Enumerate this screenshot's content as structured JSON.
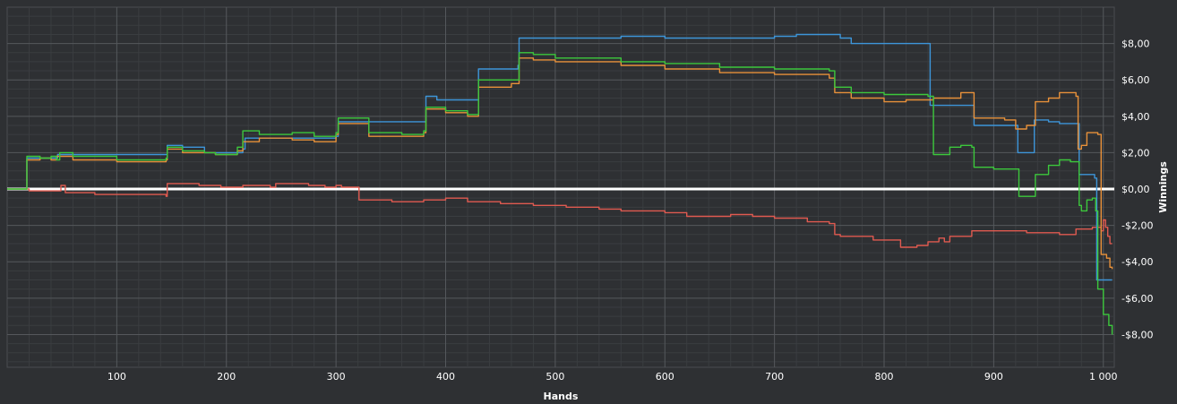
{
  "chart_data": {
    "type": "line",
    "xlabel": "Hands",
    "ylabel": "Winnings",
    "xlim": [
      0,
      1010
    ],
    "ylim": [
      -9.8,
      10
    ],
    "x_ticks": [
      100,
      200,
      300,
      400,
      500,
      600,
      700,
      800,
      900,
      1000
    ],
    "x_tick_labels": [
      "100",
      "200",
      "300",
      "400",
      "500",
      "600",
      "700",
      "800",
      "900",
      "1 000"
    ],
    "y_ticks": [
      8,
      6,
      4,
      2,
      0,
      -2,
      -4,
      -6,
      -8
    ],
    "y_tick_labels": [
      "$8,00",
      "$6,00",
      "$4,00",
      "$2,00",
      "$0,00",
      "-$2,00",
      "-$4,00",
      "-$6,00",
      "-$8,00"
    ],
    "grid": true,
    "zero_line": true,
    "series": [
      {
        "color": "#e05a50",
        "points": [
          [
            0,
            0
          ],
          [
            20,
            -0.1
          ],
          [
            48,
            -0.1
          ],
          [
            49,
            0.2
          ],
          [
            52,
            0.2
          ],
          [
            53,
            -0.2
          ],
          [
            80,
            -0.3
          ],
          [
            145,
            -0.4
          ],
          [
            146,
            0.3
          ],
          [
            175,
            0.2
          ],
          [
            195,
            0.1
          ],
          [
            215,
            0.2
          ],
          [
            240,
            0.1
          ],
          [
            245,
            0.3
          ],
          [
            275,
            0.2
          ],
          [
            290,
            0.1
          ],
          [
            300,
            0.2
          ],
          [
            305,
            0.1
          ],
          [
            320,
            0.1
          ],
          [
            321,
            -0.6
          ],
          [
            350,
            -0.6
          ],
          [
            351,
            -0.7
          ],
          [
            380,
            -0.6
          ],
          [
            400,
            -0.5
          ],
          [
            420,
            -0.7
          ],
          [
            450,
            -0.8
          ],
          [
            480,
            -0.9
          ],
          [
            500,
            -0.9
          ],
          [
            510,
            -1.0
          ],
          [
            540,
            -1.1
          ],
          [
            560,
            -1.2
          ],
          [
            600,
            -1.3
          ],
          [
            620,
            -1.5
          ],
          [
            650,
            -1.5
          ],
          [
            660,
            -1.4
          ],
          [
            680,
            -1.5
          ],
          [
            700,
            -1.6
          ],
          [
            730,
            -1.8
          ],
          [
            750,
            -1.9
          ],
          [
            755,
            -2.5
          ],
          [
            760,
            -2.6
          ],
          [
            790,
            -2.8
          ],
          [
            810,
            -2.8
          ],
          [
            815,
            -3.2
          ],
          [
            830,
            -3.1
          ],
          [
            840,
            -2.9
          ],
          [
            850,
            -2.7
          ],
          [
            855,
            -2.9
          ],
          [
            860,
            -2.6
          ],
          [
            880,
            -2.3
          ],
          [
            900,
            -2.3
          ],
          [
            930,
            -2.4
          ],
          [
            960,
            -2.5
          ],
          [
            975,
            -2.2
          ],
          [
            990,
            -2.1
          ],
          [
            998,
            -2.3
          ],
          [
            1000,
            -1.7
          ],
          [
            1002,
            -2.1
          ],
          [
            1004,
            -2.6
          ],
          [
            1006,
            -3.0
          ],
          [
            1008,
            -3.0
          ]
        ]
      },
      {
        "color": "#3d95d9",
        "points": [
          [
            0,
            0
          ],
          [
            17,
            0
          ],
          [
            18,
            1.7
          ],
          [
            40,
            1.7
          ],
          [
            45,
            1.7
          ],
          [
            46,
            1.9
          ],
          [
            60,
            1.9
          ],
          [
            145,
            1.9
          ],
          [
            146,
            2.4
          ],
          [
            160,
            2.3
          ],
          [
            180,
            2.0
          ],
          [
            200,
            2.0
          ],
          [
            215,
            2.2
          ],
          [
            217,
            2.8
          ],
          [
            230,
            2.8
          ],
          [
            260,
            2.8
          ],
          [
            300,
            2.9
          ],
          [
            302,
            3.7
          ],
          [
            380,
            3.7
          ],
          [
            382,
            5.1
          ],
          [
            390,
            5.1
          ],
          [
            392,
            4.9
          ],
          [
            428,
            4.9
          ],
          [
            430,
            6.6
          ],
          [
            460,
            6.6
          ],
          [
            466,
            6.8
          ],
          [
            467,
            8.3
          ],
          [
            500,
            8.3
          ],
          [
            560,
            8.4
          ],
          [
            600,
            8.3
          ],
          [
            700,
            8.4
          ],
          [
            720,
            8.5
          ],
          [
            760,
            8.3
          ],
          [
            770,
            8.0
          ],
          [
            830,
            8.0
          ],
          [
            840,
            8.0
          ],
          [
            842,
            4.6
          ],
          [
            880,
            4.6
          ],
          [
            882,
            3.5
          ],
          [
            920,
            3.5
          ],
          [
            922,
            2.0
          ],
          [
            935,
            2.0
          ],
          [
            937,
            3.8
          ],
          [
            950,
            3.7
          ],
          [
            960,
            3.6
          ],
          [
            975,
            3.6
          ],
          [
            978,
            0.8
          ],
          [
            990,
            0.8
          ],
          [
            992,
            0.6
          ],
          [
            994,
            -5.0
          ],
          [
            1008,
            -5.0
          ]
        ]
      },
      {
        "color": "#e8913a",
        "points": [
          [
            0,
            0
          ],
          [
            17,
            0
          ],
          [
            18,
            1.6
          ],
          [
            30,
            1.7
          ],
          [
            40,
            1.6
          ],
          [
            45,
            1.8
          ],
          [
            60,
            1.6
          ],
          [
            100,
            1.5
          ],
          [
            145,
            1.6
          ],
          [
            146,
            2.2
          ],
          [
            160,
            2.0
          ],
          [
            190,
            1.9
          ],
          [
            210,
            2.1
          ],
          [
            215,
            2.6
          ],
          [
            230,
            2.8
          ],
          [
            260,
            2.7
          ],
          [
            280,
            2.6
          ],
          [
            300,
            3.0
          ],
          [
            302,
            3.6
          ],
          [
            330,
            2.9
          ],
          [
            360,
            2.9
          ],
          [
            380,
            3.1
          ],
          [
            382,
            4.4
          ],
          [
            400,
            4.2
          ],
          [
            420,
            4.0
          ],
          [
            430,
            5.6
          ],
          [
            460,
            5.8
          ],
          [
            467,
            7.2
          ],
          [
            480,
            7.1
          ],
          [
            500,
            7.0
          ],
          [
            560,
            6.8
          ],
          [
            600,
            6.6
          ],
          [
            650,
            6.4
          ],
          [
            700,
            6.3
          ],
          [
            750,
            6.1
          ],
          [
            755,
            5.3
          ],
          [
            770,
            5.0
          ],
          [
            800,
            4.8
          ],
          [
            820,
            4.9
          ],
          [
            845,
            5.0
          ],
          [
            850,
            5.0
          ],
          [
            870,
            5.3
          ],
          [
            880,
            5.3
          ],
          [
            882,
            3.9
          ],
          [
            900,
            3.9
          ],
          [
            910,
            3.8
          ],
          [
            920,
            3.3
          ],
          [
            930,
            3.5
          ],
          [
            938,
            4.8
          ],
          [
            950,
            5.0
          ],
          [
            960,
            5.3
          ],
          [
            975,
            5.1
          ],
          [
            977,
            2.2
          ],
          [
            980,
            2.4
          ],
          [
            985,
            3.1
          ],
          [
            990,
            3.1
          ],
          [
            995,
            3.0
          ],
          [
            998,
            -3.6
          ],
          [
            1003,
            -3.8
          ],
          [
            1006,
            -4.3
          ],
          [
            1008,
            -4.4
          ]
        ]
      },
      {
        "color": "#3cc83c",
        "points": [
          [
            0,
            0
          ],
          [
            17,
            0
          ],
          [
            18,
            1.8
          ],
          [
            30,
            1.7
          ],
          [
            40,
            1.8
          ],
          [
            45,
            1.6
          ],
          [
            48,
            2.0
          ],
          [
            60,
            1.8
          ],
          [
            100,
            1.6
          ],
          [
            145,
            1.7
          ],
          [
            146,
            2.3
          ],
          [
            160,
            2.1
          ],
          [
            180,
            2.0
          ],
          [
            190,
            1.9
          ],
          [
            210,
            2.3
          ],
          [
            215,
            3.2
          ],
          [
            230,
            3.0
          ],
          [
            260,
            3.1
          ],
          [
            280,
            2.9
          ],
          [
            300,
            3.1
          ],
          [
            302,
            3.9
          ],
          [
            330,
            3.1
          ],
          [
            360,
            3.0
          ],
          [
            380,
            3.2
          ],
          [
            382,
            4.5
          ],
          [
            400,
            4.3
          ],
          [
            420,
            4.1
          ],
          [
            430,
            6.0
          ],
          [
            460,
            6.0
          ],
          [
            467,
            7.5
          ],
          [
            480,
            7.4
          ],
          [
            500,
            7.2
          ],
          [
            560,
            7.0
          ],
          [
            600,
            6.9
          ],
          [
            650,
            6.7
          ],
          [
            700,
            6.6
          ],
          [
            750,
            6.5
          ],
          [
            755,
            5.6
          ],
          [
            770,
            5.3
          ],
          [
            800,
            5.2
          ],
          [
            820,
            5.2
          ],
          [
            840,
            5.1
          ],
          [
            845,
            1.9
          ],
          [
            860,
            2.3
          ],
          [
            870,
            2.4
          ],
          [
            880,
            2.3
          ],
          [
            882,
            1.2
          ],
          [
            900,
            1.1
          ],
          [
            920,
            1.1
          ],
          [
            923,
            -0.4
          ],
          [
            935,
            -0.4
          ],
          [
            938,
            0.8
          ],
          [
            950,
            1.3
          ],
          [
            960,
            1.6
          ],
          [
            970,
            1.5
          ],
          [
            975,
            1.5
          ],
          [
            978,
            -0.9
          ],
          [
            980,
            -1.2
          ],
          [
            985,
            -0.6
          ],
          [
            990,
            -0.5
          ],
          [
            993,
            -1.2
          ],
          [
            995,
            -5.5
          ],
          [
            1000,
            -6.9
          ],
          [
            1005,
            -7.5
          ],
          [
            1008,
            -8.0
          ]
        ]
      }
    ]
  }
}
